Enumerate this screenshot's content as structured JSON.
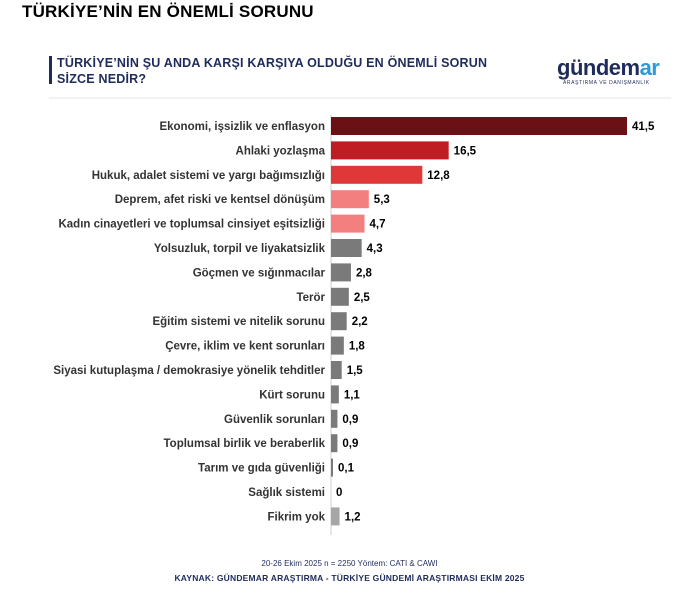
{
  "page_title": "TÜRKİYE’NİN EN ÖNEMLİ SORUNU",
  "question": "TÜRKİYE’NİN ŞU ANDA KARŞI KARŞIYA OLDUĞU EN ÖNEMLİ SORUN SİZCE NEDİR?",
  "logo": {
    "main_part1": "gündem",
    "main_part2": "ar",
    "subtitle": "ARAŞTIRMA VE DANIŞMANLIK"
  },
  "footnote": "20-26 Ekim 2025 n = 2250 Yöntem: CATI & CAWI",
  "source": "KAYNAK: GÜNDEMAR ARAŞTIRMA - TÜRKİYE GÜNDEMİ ARAŞTIRMASI EKİM 2025",
  "chart_data": {
    "type": "bar",
    "orientation": "horizontal",
    "categories": [
      "Ekonomi, işsizlik ve enflasyon",
      "Ahlaki yozlaşma",
      "Hukuk, adalet sistemi ve yargı bağımsızlığı",
      "Deprem, afet riski ve kentsel dönüşüm",
      "Kadın cinayetleri ve toplumsal cinsiyet eşitsizliği",
      "Yolsuzluk, torpil ve liyakatsizlik",
      "Göçmen ve sığınmacılar",
      "Terör",
      "Eğitim sistemi ve nitelik sorunu",
      "Çevre, iklim ve kent sorunları",
      "Siyasi kutuplaşma / demokrasiye yönelik tehditler",
      "Kürt sorunu",
      "Güvenlik sorunları",
      "Toplumsal birlik ve beraberlik",
      "Tarım ve gıda güvenliği",
      "Sağlık sistemi",
      "Fikrim yok"
    ],
    "values": [
      41.5,
      16.5,
      12.8,
      5.3,
      4.7,
      4.3,
      2.8,
      2.5,
      2.2,
      1.8,
      1.5,
      1.1,
      0.9,
      0.9,
      0.1,
      0,
      1.2
    ],
    "value_labels": [
      "41,5",
      "16,5",
      "12,8",
      "5,3",
      "4,7",
      "4,3",
      "2,8",
      "2,5",
      "2,2",
      "1,8",
      "1,5",
      "1,1",
      "0,9",
      "0,9",
      "0,1",
      "0",
      "1,2"
    ],
    "colors": [
      "#6b1015",
      "#c01c24",
      "#e03838",
      "#f47f7f",
      "#f47f7f",
      "#7a7a7a",
      "#7a7a7a",
      "#7a7a7a",
      "#7a7a7a",
      "#7a7a7a",
      "#7a7a7a",
      "#7a7a7a",
      "#7a7a7a",
      "#7a7a7a",
      "#7a7a7a",
      "#7a7a7a",
      "#a6a6a6"
    ],
    "xlim": [
      0,
      41.5
    ],
    "grid": false,
    "title": "",
    "xlabel": "",
    "ylabel": ""
  }
}
